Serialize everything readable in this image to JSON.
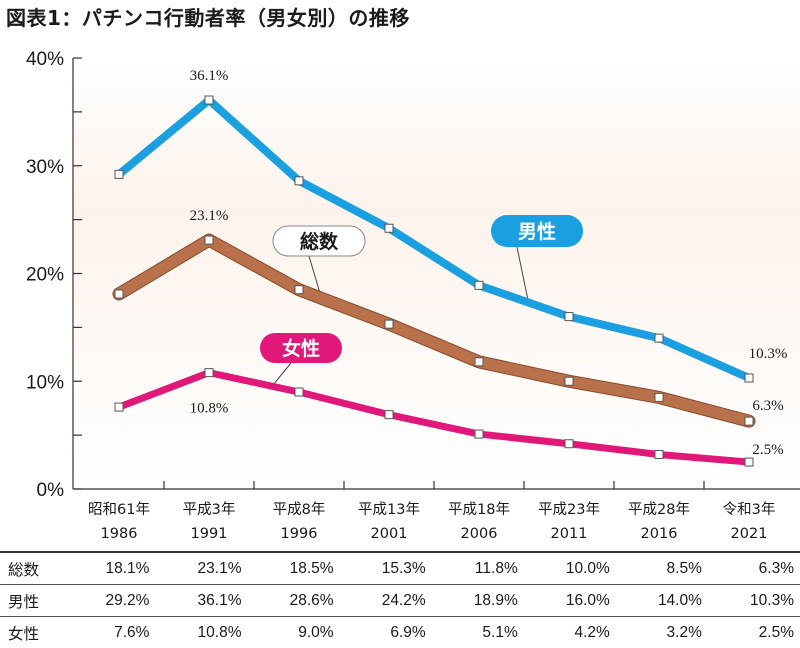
{
  "title": "図表1：パチンコ行動者率（男女別）の推移",
  "chart_data": {
    "type": "line",
    "title": "図表1：パチンコ行動者率（男女別）の推移",
    "xlabel": "",
    "ylabel": "",
    "ylim": [
      0,
      40
    ],
    "y_ticks": [
      "0%",
      "10%",
      "20%",
      "30%",
      "40%"
    ],
    "grid": false,
    "categories": [
      [
        "昭和61年",
        "1986"
      ],
      [
        "平成3年",
        "1991"
      ],
      [
        "平成8年",
        "1996"
      ],
      [
        "平成13年",
        "2001"
      ],
      [
        "平成18年",
        "2006"
      ],
      [
        "平成23年",
        "2011"
      ],
      [
        "平成28年",
        "2016"
      ],
      [
        "令和3年",
        "2021"
      ]
    ],
    "series": [
      {
        "key": "male",
        "name": "男性",
        "color": "#1a9fe0",
        "values": [
          29.2,
          36.1,
          28.6,
          24.2,
          18.9,
          16.0,
          14.0,
          10.3
        ]
      },
      {
        "key": "total",
        "name": "総数",
        "color": "#b8714a",
        "values": [
          18.1,
          23.1,
          18.5,
          15.3,
          11.8,
          10.0,
          8.5,
          6.3
        ]
      },
      {
        "key": "female",
        "name": "女性",
        "color": "#e0187a",
        "values": [
          7.6,
          10.8,
          9.0,
          6.9,
          5.1,
          4.2,
          3.2,
          2.5
        ]
      }
    ],
    "annotations": [
      {
        "series": "male",
        "index": 1,
        "text": "36.1%"
      },
      {
        "series": "male",
        "index": 7,
        "text": "10.3%"
      },
      {
        "series": "total",
        "index": 1,
        "text": "23.1%"
      },
      {
        "series": "total",
        "index": 7,
        "text": "6.3%"
      },
      {
        "series": "female",
        "index": 1,
        "text": "10.8%"
      },
      {
        "series": "female",
        "index": 7,
        "text": "2.5%"
      }
    ]
  },
  "table": {
    "rows": [
      {
        "label": "総数",
        "values": [
          "18.1%",
          "23.1%",
          "18.5%",
          "15.3%",
          "11.8%",
          "10.0%",
          "8.5%",
          "6.3%"
        ]
      },
      {
        "label": "男性",
        "values": [
          "29.2%",
          "36.1%",
          "28.6%",
          "24.2%",
          "18.9%",
          "16.0%",
          "14.0%",
          "10.3%"
        ]
      },
      {
        "label": "女性",
        "values": [
          "7.6%",
          "10.8%",
          "9.0%",
          "6.9%",
          "5.1%",
          "4.2%",
          "3.2%",
          "2.5%"
        ]
      }
    ]
  }
}
